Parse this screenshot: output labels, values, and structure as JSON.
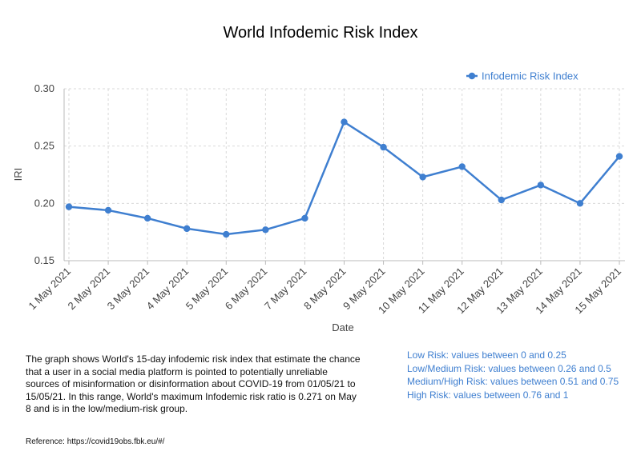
{
  "chart_data": {
    "type": "line",
    "title": "World Infodemic Risk Index",
    "xlabel": "Date",
    "ylabel": "IRI",
    "categories": [
      "1 May 2021",
      "2 May 2021",
      "3 May 2021",
      "4 May 2021",
      "5 May 2021",
      "6 May 2021",
      "7 May 2021",
      "8 May 2021",
      "9 May 2021",
      "10 May 2021",
      "11 May 2021",
      "12 May 2021",
      "13 May 2021",
      "14 May 2021",
      "15 May 2021"
    ],
    "series": [
      {
        "name": "Infodemic Risk Index",
        "color": "#3f7fd0",
        "values": [
          0.197,
          0.194,
          0.187,
          0.178,
          0.173,
          0.177,
          0.187,
          0.271,
          0.249,
          0.223,
          0.232,
          0.203,
          0.216,
          0.2,
          0.241
        ]
      }
    ],
    "ylim": [
      0.15,
      0.3
    ],
    "yticks": [
      "0.15",
      "0.20",
      "0.25",
      "0.30"
    ],
    "grid": true,
    "legend": "top-right"
  },
  "description": "The graph shows World's 15-day infodemic risk index that estimate the chance that a user in a social media platform is pointed to potentially unreliable sources of misinformation or disinformation about COVID-19 from 01/05/21 to 15/05/21. In this range, World's maximum Infodemic risk ratio is 0.271 on May 8 and is in the low/medium-risk group.",
  "risk_levels": [
    "Low Risk: values between 0 and 0.25",
    "Low/Medium Risk: values between 0.26 and 0.5",
    "Medium/High Risk: values between 0.51 and 0.75",
    "High Risk: values between 0.76 and 1"
  ],
  "reference": "Reference: https://covid19obs.fbk.eu/#/"
}
